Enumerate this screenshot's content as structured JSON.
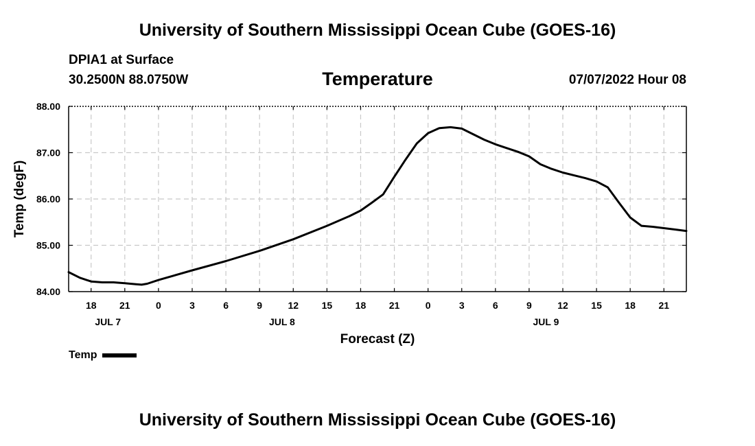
{
  "header": {
    "title": "University of Southern Mississippi Ocean Cube (GOES-16)",
    "footer_title": "University of Southern Mississippi Ocean Cube (GOES-16)",
    "station": "DPIA1 at Surface",
    "coords": "30.2500N  88.0750W",
    "datetime": "07/07/2022 Hour 08"
  },
  "chart_data": {
    "type": "line",
    "title": "Temperature",
    "xlabel": "Forecast (Z)",
    "ylabel": "Temp (degF)",
    "ylim": [
      84.0,
      88.0
    ],
    "xlim": [
      16,
      71
    ],
    "x_unit": "hours since 00Z JUL 7",
    "grid": true,
    "y_ticks": [
      "84.00",
      "85.00",
      "86.00",
      "87.00",
      "88.00"
    ],
    "y_tick_values": [
      84,
      85,
      86,
      87,
      88
    ],
    "x_ticks": [
      {
        "x": 18,
        "label": "18"
      },
      {
        "x": 21,
        "label": "21"
      },
      {
        "x": 24,
        "label": "0"
      },
      {
        "x": 27,
        "label": "3"
      },
      {
        "x": 30,
        "label": "6"
      },
      {
        "x": 33,
        "label": "9"
      },
      {
        "x": 36,
        "label": "12"
      },
      {
        "x": 39,
        "label": "15"
      },
      {
        "x": 42,
        "label": "18"
      },
      {
        "x": 45,
        "label": "21"
      },
      {
        "x": 48,
        "label": "0"
      },
      {
        "x": 51,
        "label": "3"
      },
      {
        "x": 54,
        "label": "6"
      },
      {
        "x": 57,
        "label": "9"
      },
      {
        "x": 60,
        "label": "12"
      },
      {
        "x": 63,
        "label": "15"
      },
      {
        "x": 66,
        "label": "18"
      },
      {
        "x": 69,
        "label": "21"
      }
    ],
    "day_labels": [
      {
        "x": 19.5,
        "label": "JUL 7"
      },
      {
        "x": 35,
        "label": "JUL 8"
      },
      {
        "x": 58.5,
        "label": "JUL 9"
      }
    ],
    "series": [
      {
        "name": "Temp",
        "x": [
          16,
          17,
          18,
          19,
          20,
          21,
          22,
          22.5,
          23,
          24,
          27,
          30,
          33,
          36,
          39,
          41,
          42,
          43,
          44,
          45,
          46,
          47,
          48,
          49,
          50,
          51,
          52,
          53,
          54,
          55,
          56,
          57,
          58,
          59,
          60,
          61,
          62,
          63,
          64,
          65,
          66,
          67,
          68,
          69,
          70,
          71
        ],
        "values": [
          84.42,
          84.3,
          84.22,
          84.2,
          84.2,
          84.18,
          84.16,
          84.15,
          84.17,
          84.25,
          84.46,
          84.66,
          84.88,
          85.13,
          85.42,
          85.63,
          85.75,
          85.92,
          86.1,
          86.48,
          86.85,
          87.2,
          87.42,
          87.53,
          87.55,
          87.52,
          87.4,
          87.28,
          87.18,
          87.1,
          87.02,
          86.92,
          86.75,
          86.65,
          86.57,
          86.51,
          86.45,
          86.38,
          86.25,
          85.92,
          85.6,
          85.42,
          85.4,
          85.37,
          85.34,
          85.31
        ]
      }
    ],
    "legend": "bottom-left"
  }
}
